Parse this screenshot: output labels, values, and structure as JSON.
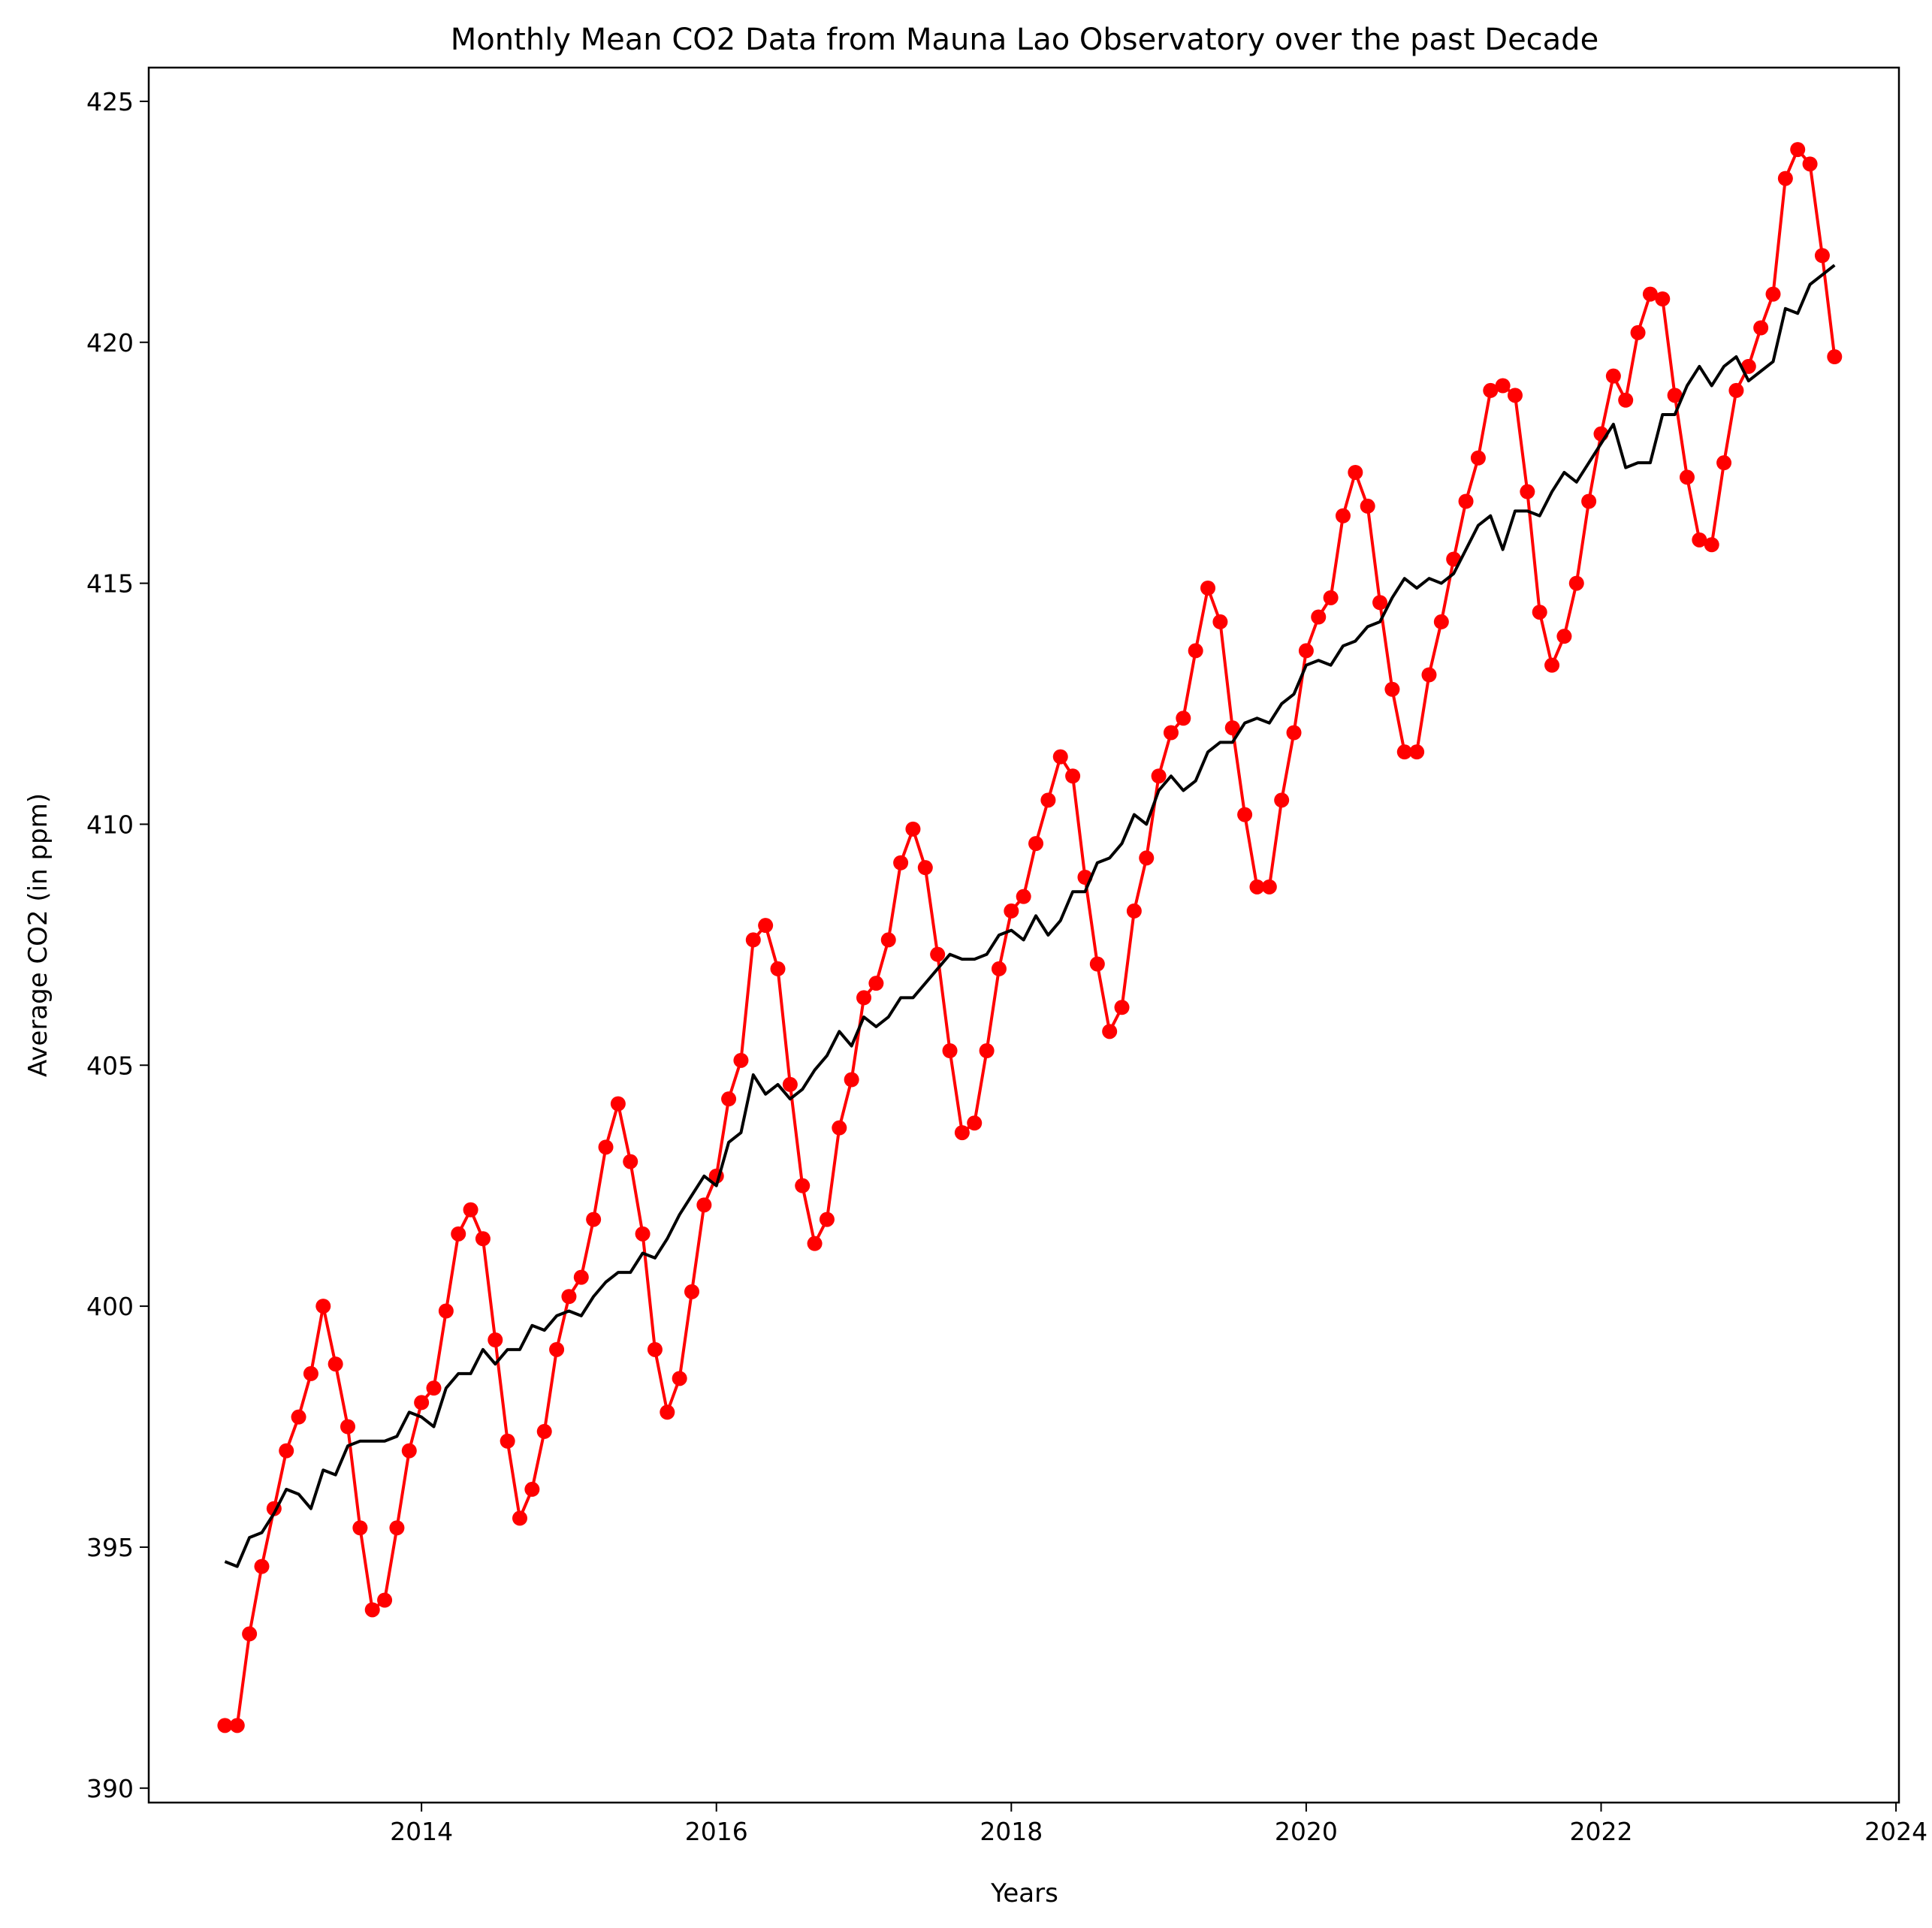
{
  "chart_data": {
    "type": "line",
    "title": "Monthly Mean CO2 Data from Mauna Lao Observatory over the past Decade",
    "xlabel": "Years",
    "ylabel": "Average CO2 (in ppm)",
    "xlim": [
      2012.15,
      2024.02
    ],
    "ylim": [
      389.7,
      425.7
    ],
    "xticks": [
      2014,
      2016,
      2018,
      2020,
      2022,
      2024
    ],
    "yticks": [
      390,
      395,
      400,
      405,
      410,
      415,
      420,
      425
    ],
    "grid": false,
    "legend": "none",
    "x_start_year": 2012,
    "x_start_month": 9,
    "series": [
      {
        "color": "#ff0000",
        "marker": "circle",
        "values": [
          391.3,
          391.3,
          393.2,
          394.6,
          395.8,
          397.0,
          397.7,
          398.6,
          400.0,
          398.8,
          397.5,
          395.4,
          393.7,
          393.9,
          395.4,
          397.0,
          398.0,
          398.3,
          399.9,
          401.5,
          402.0,
          401.4,
          399.3,
          397.2,
          395.6,
          396.2,
          397.4,
          399.1,
          400.2,
          400.6,
          401.8,
          403.3,
          404.2,
          403.0,
          401.5,
          399.1,
          397.8,
          398.5,
          400.3,
          402.1,
          402.7,
          404.3,
          405.1,
          407.6,
          407.9,
          407.0,
          404.6,
          402.5,
          401.3,
          401.8,
          403.7,
          404.7,
          406.4,
          406.7,
          407.6,
          409.2,
          409.9,
          409.1,
          407.3,
          405.3,
          403.6,
          403.8,
          405.3,
          407.0,
          408.2,
          408.5,
          409.6,
          410.5,
          411.4,
          411.0,
          408.9,
          407.1,
          405.7,
          406.2,
          408.2,
          409.3,
          411.0,
          411.9,
          412.2,
          413.6,
          414.9,
          414.2,
          412.0,
          410.2,
          408.7,
          408.7,
          410.5,
          411.9,
          413.6,
          414.3,
          414.7,
          416.4,
          417.3,
          416.6,
          414.6,
          412.8,
          411.5,
          411.5,
          413.1,
          414.2,
          415.5,
          416.7,
          417.6,
          419.0,
          419.1,
          418.9,
          416.9,
          414.4,
          413.3,
          413.9,
          415.0,
          416.7,
          418.1,
          419.3,
          418.8,
          420.2,
          421.0,
          420.9,
          418.9,
          417.2,
          415.9,
          415.8,
          417.5,
          419.0,
          419.5,
          420.3,
          421.0,
          423.4,
          424.0,
          423.7,
          421.8,
          419.7
        ]
      },
      {
        "color": "#000000",
        "marker": "none",
        "values": [
          394.7,
          394.6,
          395.2,
          395.3,
          395.7,
          396.2,
          396.1,
          395.8,
          396.6,
          396.5,
          397.1,
          397.2,
          397.2,
          397.2,
          397.3,
          397.8,
          397.7,
          397.5,
          398.3,
          398.6,
          398.6,
          399.1,
          398.8,
          399.1,
          399.1,
          399.6,
          399.5,
          399.8,
          399.9,
          399.8,
          400.2,
          400.5,
          400.7,
          400.7,
          401.1,
          401.0,
          401.4,
          401.9,
          402.3,
          402.7,
          402.5,
          403.4,
          403.6,
          404.8,
          404.4,
          404.6,
          404.3,
          404.5,
          404.9,
          405.2,
          405.7,
          405.4,
          406.0,
          405.8,
          406.0,
          406.4,
          406.4,
          406.7,
          407.0,
          407.3,
          407.2,
          407.2,
          407.3,
          407.7,
          407.8,
          407.6,
          408.1,
          407.7,
          408.0,
          408.6,
          408.6,
          409.2,
          409.3,
          409.6,
          410.2,
          410.0,
          410.7,
          411.0,
          410.7,
          410.9,
          411.5,
          411.7,
          411.7,
          412.1,
          412.2,
          412.1,
          412.5,
          412.7,
          413.3,
          413.4,
          413.3,
          413.7,
          413.8,
          414.1,
          414.2,
          414.7,
          415.1,
          414.9,
          415.1,
          415.0,
          415.2,
          415.7,
          416.2,
          416.4,
          415.7,
          416.5,
          416.5,
          416.4,
          416.9,
          417.3,
          417.1,
          417.5,
          417.9,
          418.3,
          417.4,
          417.5,
          417.5,
          418.5,
          418.5,
          419.1,
          419.5,
          419.1,
          419.5,
          419.7,
          419.2,
          419.4,
          419.6,
          420.7,
          420.6,
          421.2,
          421.4,
          421.6
        ]
      }
    ]
  }
}
